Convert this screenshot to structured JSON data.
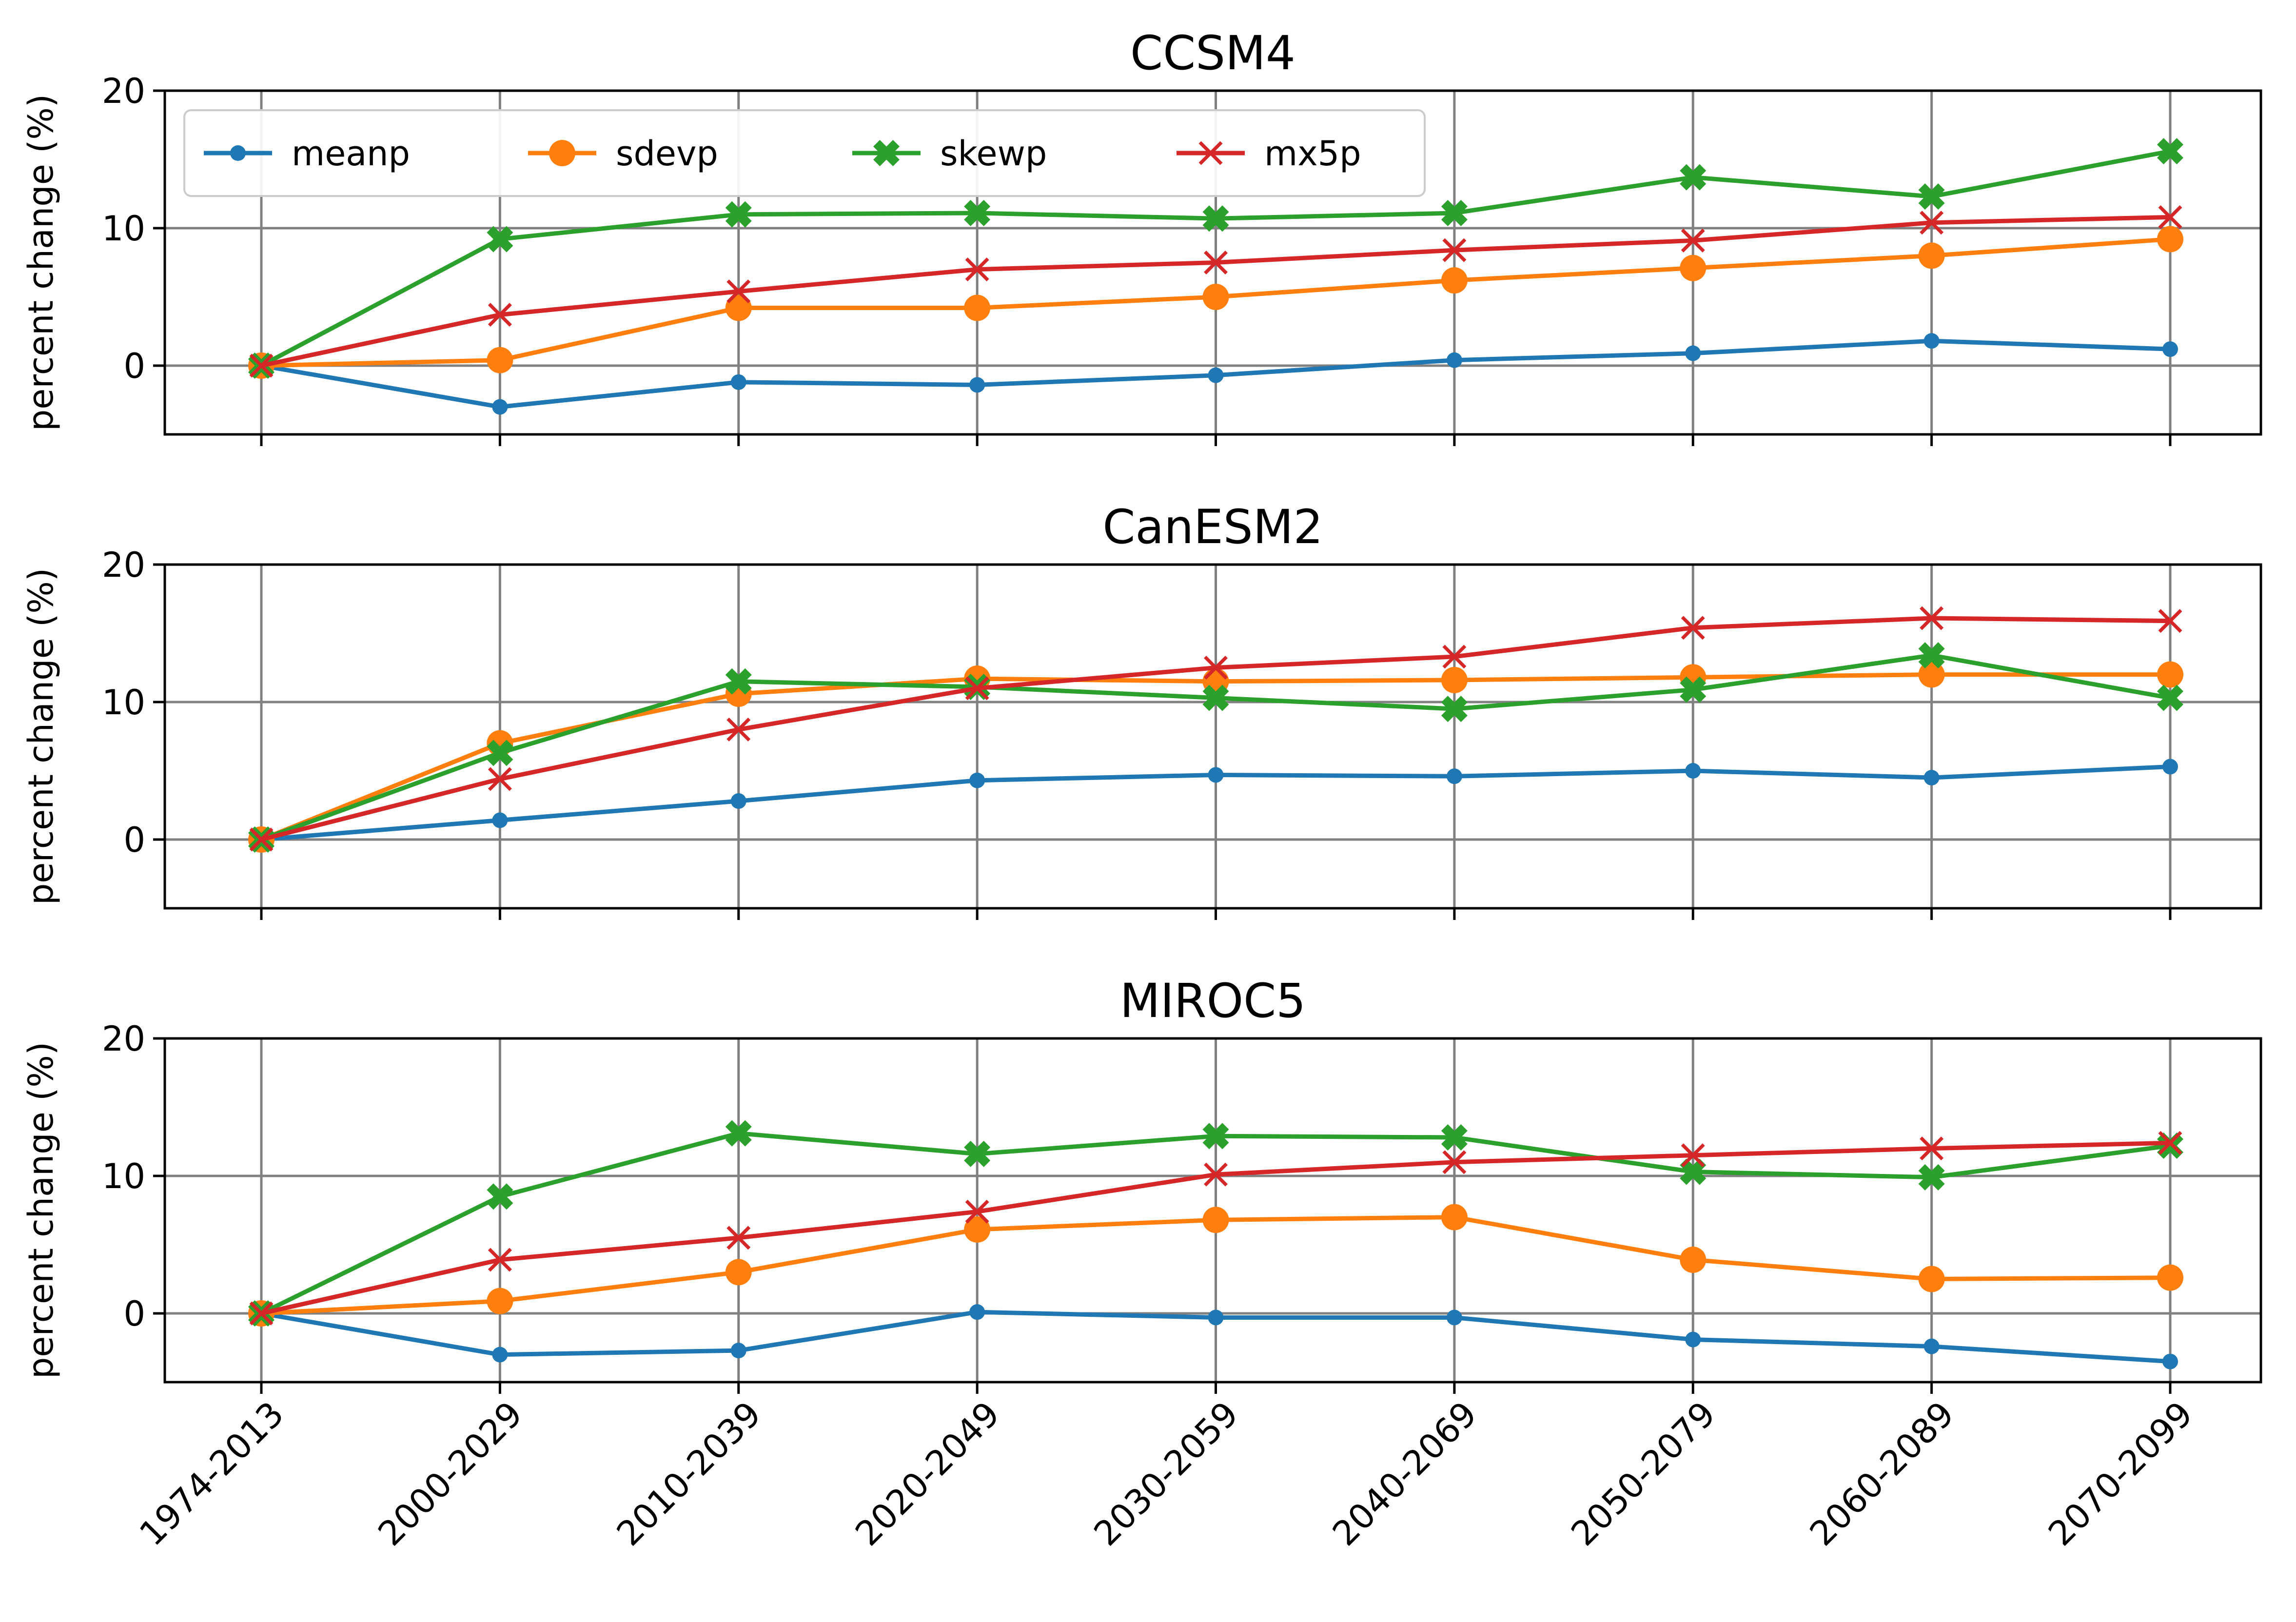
{
  "chart_data": [
    {
      "type": "line",
      "title": "CCSM4",
      "ylabel": "percent change (%)",
      "xlabel": "",
      "ylim": [
        -5,
        20
      ],
      "yticks": [
        0,
        10,
        20
      ],
      "grid": true,
      "show_xticklabels": false,
      "categories": [
        "1974-2013",
        "2000-2029",
        "2010-2039",
        "2020-2049",
        "2030-2059",
        "2040-2069",
        "2050-2079",
        "2060-2089",
        "2070-2099"
      ],
      "series": [
        {
          "name": "meanp",
          "values": [
            0,
            -3.0,
            -1.2,
            -1.4,
            -0.7,
            0.4,
            0.9,
            1.8,
            1.2
          ]
        },
        {
          "name": "sdevp",
          "values": [
            0,
            0.4,
            4.2,
            4.2,
            5.0,
            6.2,
            7.1,
            8.0,
            9.2
          ]
        },
        {
          "name": "skewp",
          "values": [
            0,
            9.2,
            11.0,
            11.1,
            10.7,
            11.1,
            13.7,
            12.3,
            15.6
          ]
        },
        {
          "name": "mx5p",
          "values": [
            0,
            3.7,
            5.4,
            7.0,
            7.5,
            8.4,
            9.1,
            10.4,
            10.8
          ]
        }
      ],
      "legend": {
        "placement": "top-left",
        "columns": 4
      }
    },
    {
      "type": "line",
      "title": "CanESM2",
      "ylabel": "percent change (%)",
      "xlabel": "",
      "ylim": [
        -5,
        20
      ],
      "yticks": [
        0,
        10,
        20
      ],
      "grid": true,
      "show_xticklabels": false,
      "categories": [
        "1974-2013",
        "2000-2029",
        "2010-2039",
        "2020-2049",
        "2030-2059",
        "2040-2069",
        "2050-2079",
        "2060-2089",
        "2070-2099"
      ],
      "series": [
        {
          "name": "meanp",
          "values": [
            0,
            1.4,
            2.8,
            4.3,
            4.7,
            4.6,
            5.0,
            4.5,
            5.3
          ]
        },
        {
          "name": "sdevp",
          "values": [
            0,
            7.0,
            10.6,
            11.7,
            11.5,
            11.6,
            11.8,
            12.0,
            12.0
          ]
        },
        {
          "name": "skewp",
          "values": [
            0,
            6.3,
            11.5,
            11.1,
            10.3,
            9.5,
            10.9,
            13.4,
            10.3
          ]
        },
        {
          "name": "mx5p",
          "values": [
            0,
            4.4,
            8.0,
            11.0,
            12.5,
            13.3,
            15.4,
            16.1,
            15.9
          ]
        }
      ]
    },
    {
      "type": "line",
      "title": "MIROC5",
      "ylabel": "percent change (%)",
      "xlabel": "",
      "ylim": [
        -5,
        20
      ],
      "yticks": [
        0,
        10,
        20
      ],
      "grid": true,
      "show_xticklabels": true,
      "categories": [
        "1974-2013",
        "2000-2029",
        "2010-2039",
        "2020-2049",
        "2030-2059",
        "2040-2069",
        "2050-2079",
        "2060-2089",
        "2070-2099"
      ],
      "series": [
        {
          "name": "meanp",
          "values": [
            0,
            -3.0,
            -2.7,
            0.1,
            -0.3,
            -0.3,
            -1.9,
            -2.4,
            -3.5
          ]
        },
        {
          "name": "sdevp",
          "values": [
            0,
            0.9,
            3.0,
            6.1,
            6.8,
            7.0,
            3.9,
            2.5,
            2.6
          ]
        },
        {
          "name": "skewp",
          "values": [
            0,
            8.5,
            13.1,
            11.6,
            12.9,
            12.8,
            10.3,
            9.9,
            12.2
          ]
        },
        {
          "name": "mx5p",
          "values": [
            0,
            3.9,
            5.5,
            7.4,
            10.1,
            11.0,
            11.5,
            12.0,
            12.4
          ]
        }
      ]
    }
  ],
  "series_styles": [
    {
      "name": "meanp",
      "color": "#1f77b4",
      "marker": "dot"
    },
    {
      "name": "sdevp",
      "color": "#ff7f0e",
      "marker": "circle"
    },
    {
      "name": "skewp",
      "color": "#2ca02c",
      "marker": "filled-x"
    },
    {
      "name": "mx5p",
      "color": "#d62728",
      "marker": "x"
    }
  ]
}
